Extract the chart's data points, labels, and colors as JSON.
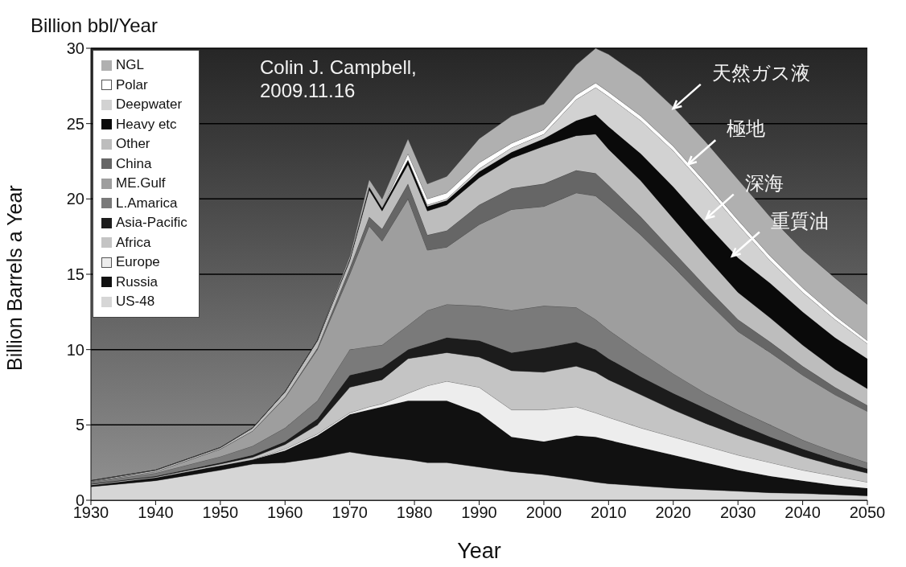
{
  "chart_data": {
    "type": "area",
    "stacked": true,
    "title": "Billion bbl/Year",
    "xlabel": "Year",
    "ylabel": "Billion Barrels a Year",
    "x": [
      1930,
      1940,
      1950,
      1955,
      1960,
      1965,
      1970,
      1973,
      1975,
      1979,
      1982,
      1985,
      1990,
      1995,
      2000,
      2005,
      2008,
      2010,
      2015,
      2020,
      2025,
      2030,
      2035,
      2040,
      2045,
      2050
    ],
    "xlim": [
      1930,
      2050
    ],
    "xticks": [
      1930,
      1940,
      1950,
      1960,
      1970,
      1980,
      1990,
      2000,
      2010,
      2020,
      2030,
      2040,
      2050
    ],
    "ylim": [
      0,
      30
    ],
    "yticks": [
      0,
      5,
      10,
      15,
      20,
      25,
      30
    ],
    "grid": "y",
    "legend": "top left",
    "series": [
      {
        "name": "US-48",
        "color": "#d6d6d6",
        "values": [
          0.9,
          1.3,
          2.0,
          2.4,
          2.5,
          2.8,
          3.2,
          3.0,
          2.9,
          2.7,
          2.5,
          2.5,
          2.2,
          1.9,
          1.7,
          1.4,
          1.2,
          1.1,
          0.95,
          0.8,
          0.7,
          0.6,
          0.5,
          0.45,
          0.38,
          0.3
        ]
      },
      {
        "name": "Russia",
        "color": "#111111",
        "values": [
          0.1,
          0.2,
          0.3,
          0.3,
          0.8,
          1.5,
          2.5,
          3.0,
          3.3,
          3.9,
          4.1,
          4.1,
          3.6,
          2.3,
          2.2,
          2.9,
          3.0,
          2.9,
          2.55,
          2.2,
          1.8,
          1.4,
          1.1,
          0.85,
          0.62,
          0.5
        ]
      },
      {
        "name": "Europe",
        "color": "#ededed",
        "values": [
          0,
          0,
          0,
          0,
          0.1,
          0.1,
          0.1,
          0.2,
          0.2,
          0.5,
          1.0,
          1.3,
          1.7,
          1.8,
          2.1,
          1.9,
          1.6,
          1.5,
          1.3,
          1.2,
          1.1,
          1.0,
          0.9,
          0.7,
          0.6,
          0.4
        ]
      },
      {
        "name": "Africa",
        "color": "#c4c4c4",
        "values": [
          0.05,
          0.05,
          0.1,
          0.15,
          0.3,
          0.6,
          1.7,
          1.6,
          1.6,
          2.3,
          2.0,
          1.9,
          2.0,
          2.6,
          2.5,
          2.7,
          2.7,
          2.5,
          2.2,
          1.8,
          1.5,
          1.3,
          1.1,
          0.9,
          0.7,
          0.6
        ]
      },
      {
        "name": "Asia-Pacific",
        "color": "#1c1c1c",
        "values": [
          0.05,
          0.05,
          0.1,
          0.15,
          0.2,
          0.4,
          0.8,
          0.8,
          0.8,
          0.6,
          0.8,
          1.0,
          1.1,
          1.2,
          1.6,
          1.6,
          1.5,
          1.4,
          1.2,
          1.1,
          1.0,
          0.8,
          0.6,
          0.5,
          0.4,
          0.3
        ]
      },
      {
        "name": "L.Amarica",
        "color": "#7a7a7a",
        "values": [
          0.1,
          0.2,
          0.4,
          0.6,
          0.9,
          1.2,
          1.7,
          1.6,
          1.5,
          1.6,
          2.2,
          2.2,
          2.3,
          2.8,
          2.8,
          2.3,
          2.0,
          1.9,
          1.6,
          1.3,
          1.0,
          0.9,
          0.8,
          0.6,
          0.5,
          0.4
        ]
      },
      {
        "name": "ME.Gulf",
        "color": "#9e9e9e",
        "values": [
          0.05,
          0.1,
          0.5,
          1.0,
          2.0,
          3.4,
          5.0,
          8.0,
          6.9,
          8.4,
          4.0,
          3.8,
          5.4,
          6.7,
          6.6,
          7.6,
          8.2,
          8.2,
          7.8,
          7.1,
          6.2,
          5.2,
          4.8,
          4.3,
          3.8,
          3.4
        ]
      },
      {
        "name": "China",
        "color": "#666666",
        "values": [
          0,
          0,
          0,
          0,
          0.05,
          0.1,
          0.4,
          0.6,
          0.8,
          1.0,
          1.0,
          1.1,
          1.3,
          1.4,
          1.5,
          1.5,
          1.5,
          1.4,
          1.2,
          1.0,
          0.9,
          0.8,
          0.7,
          0.6,
          0.5,
          0.4
        ]
      },
      {
        "name": "Other",
        "color": "#bdbdbd",
        "values": [
          0.05,
          0.1,
          0.1,
          0.2,
          0.35,
          0.5,
          0.5,
          1.8,
          1.2,
          1.3,
          1.6,
          1.7,
          1.8,
          2.0,
          2.5,
          2.3,
          2.6,
          2.4,
          2.4,
          2.2,
          2.0,
          1.8,
          1.6,
          1.4,
          1.2,
          1.1
        ]
      },
      {
        "name": "Heavy etc",
        "color": "#0a0a0a",
        "values": [
          0,
          0,
          0,
          0,
          0,
          0,
          0.1,
          0.2,
          0.2,
          0.3,
          0.3,
          0.3,
          0.4,
          0.4,
          0.5,
          1.0,
          1.3,
          1.5,
          1.8,
          2.1,
          2.2,
          2.3,
          2.3,
          2.2,
          2.1,
          2.0
        ]
      },
      {
        "name": "Deepwater",
        "color": "#d2d2d2",
        "values": [
          0,
          0,
          0,
          0,
          0,
          0,
          0,
          0,
          0,
          0,
          0.1,
          0.1,
          0.2,
          0.3,
          0.3,
          1.4,
          1.8,
          2.0,
          2.2,
          2.4,
          2.4,
          2.2,
          1.5,
          1.3,
          1.2,
          1.0
        ]
      },
      {
        "name": "Polar",
        "color": "#ffffff",
        "values": [
          0,
          0,
          0,
          0,
          0,
          0,
          0,
          0,
          0,
          0.4,
          0.4,
          0.4,
          0.4,
          0.3,
          0.3,
          0.3,
          0.3,
          0.3,
          0.3,
          0.3,
          0.3,
          0.3,
          0.3,
          0.3,
          0.25,
          0.2
        ]
      },
      {
        "name": "NGL",
        "color": "#b0b0b0",
        "values": [
          0,
          0,
          0,
          0,
          0,
          0,
          0.2,
          0.5,
          0.6,
          1.0,
          1.0,
          1.1,
          1.6,
          1.8,
          1.7,
          2.0,
          2.3,
          2.5,
          2.6,
          2.6,
          2.7,
          2.7,
          2.6,
          2.5,
          2.5,
          2.4
        ]
      }
    ],
    "annotations": [
      "Colin J. Campbell,\n2009.11.16",
      {
        "text": "天然ガス液",
        "x": 2020,
        "y": 26.0
      },
      {
        "text": "極地",
        "x": 2022.3,
        "y": 22.3
      },
      {
        "text": "深海",
        "x": 2025.1,
        "y": 18.7
      },
      {
        "text": "重質油",
        "x": 2029.1,
        "y": 16.2
      }
    ]
  }
}
